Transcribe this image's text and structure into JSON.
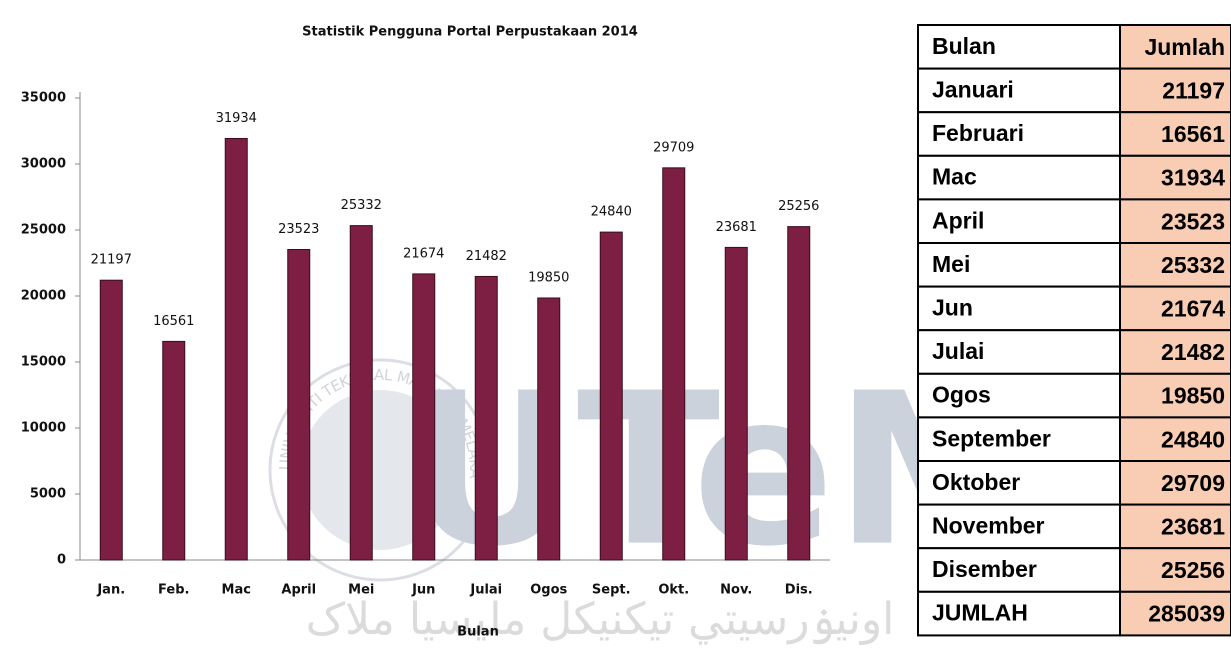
{
  "chart_data": {
    "type": "bar",
    "title": "Statistik Pengguna Portal Perpustakaan 2014",
    "x_label": "Bulan",
    "categories": [
      "Jan.",
      "Feb.",
      "Mac",
      "April",
      "Mei",
      "Jun",
      "Julai",
      "Ogos",
      "Sept.",
      "Okt.",
      "Nov.",
      "Dis."
    ],
    "values": [
      21197,
      16561,
      31934,
      23523,
      25332,
      21674,
      21482,
      19850,
      24840,
      29709,
      23681,
      25256
    ],
    "color": "#7d1f42",
    "ylim": [
      0,
      35000
    ],
    "yticks": [
      0,
      5000,
      10000,
      15000,
      20000,
      25000,
      30000,
      35000
    ],
    "grid": false
  },
  "table": {
    "header": [
      "Bulan",
      "Jumlah"
    ],
    "rows": [
      [
        "Januari",
        21197
      ],
      [
        "Februari",
        16561
      ],
      [
        "Mac",
        31934
      ],
      [
        "April",
        23523
      ],
      [
        "Mei",
        25332
      ],
      [
        "Jun",
        21674
      ],
      [
        "Julai",
        21482
      ],
      [
        "Ogos",
        19850
      ],
      [
        "September",
        24840
      ],
      [
        "Oktober",
        29709
      ],
      [
        "November",
        23681
      ],
      [
        "Disember",
        25256
      ]
    ],
    "total": [
      "JUMLAH",
      285039
    ]
  },
  "watermark": {
    "logo": "UTeM",
    "ring": "UNIVERSITI TEKNIKAL MALAYSIA MELAKA",
    "jawi": "اونيۏرسيتي تيکنيکل مليسيا ملاک"
  }
}
